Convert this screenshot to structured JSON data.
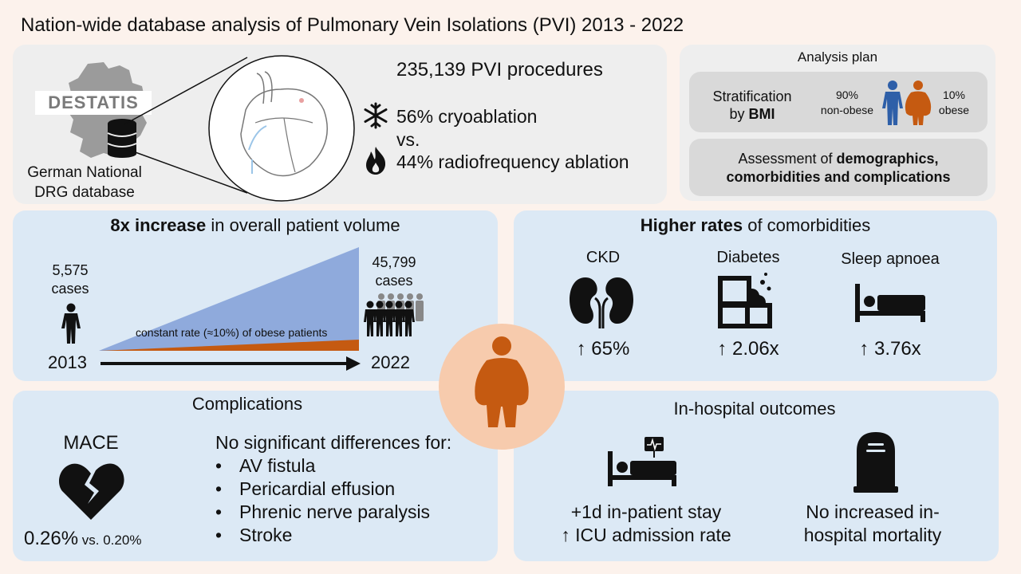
{
  "title": "Nation-wide database analysis of Pulmonary Vein Isolations (PVI) 2013 - 2022",
  "top": {
    "logo_text": "DESTATIS",
    "database_label_1": "German National",
    "database_label_2": "DRG database",
    "procedures": "235,139 PVI procedures",
    "cryo": "56% cryoablation",
    "vs": "vs.",
    "rf": "44% radiofrequency ablation"
  },
  "analysis_plan": {
    "heading": "Analysis plan",
    "strat_1": "Stratification",
    "strat_2_prefix": "by ",
    "strat_2_bold": "BMI",
    "nonobese_pct": "90%",
    "nonobese_label": "non-obese",
    "obese_pct": "10%",
    "obese_label": "obese",
    "assess_prefix": "Assessment of ",
    "assess_bold_1": "demographics,",
    "assess_bold_2": "comorbidities and complications"
  },
  "volume": {
    "heading_bold": "8x increase",
    "heading_rest": " in overall patient volume",
    "start_count": "5,575",
    "start_unit": "cases",
    "end_count": "45,799",
    "end_unit": "cases",
    "start_year": "2013",
    "end_year": "2022",
    "obese_note": "constant rate (≈10%) of obese patients"
  },
  "comorbidities": {
    "heading_bold": "Higher rates",
    "heading_rest": " of comorbidities",
    "items": [
      {
        "label": "CKD",
        "value": "↑ 65%"
      },
      {
        "label": "Diabetes",
        "value": "↑ 2.06x"
      },
      {
        "label": "Sleep apnoea",
        "value": "↑ 3.76x"
      }
    ]
  },
  "complications": {
    "heading": "Complications",
    "mace_label": "MACE",
    "mace_value": "0.26%",
    "mace_vs": " vs. 0.20%",
    "nodiff_heading": "No significant differences for:",
    "items": [
      "AV fistula",
      "Pericardial effusion",
      "Phrenic nerve paralysis",
      "Stroke"
    ]
  },
  "outcomes": {
    "heading": "In-hospital outcomes",
    "stay_1": "+1d in-patient stay",
    "stay_2": "↑ ICU admission rate",
    "mort_1": "No increased in-",
    "mort_2": "hospital mortality"
  },
  "colors": {
    "accent_orange": "#c55a11",
    "blue_area": "#8faadc",
    "panel_blue": "#dce9f5",
    "panel_gray": "#eeeeee",
    "center_circle": "#f7cbad"
  }
}
